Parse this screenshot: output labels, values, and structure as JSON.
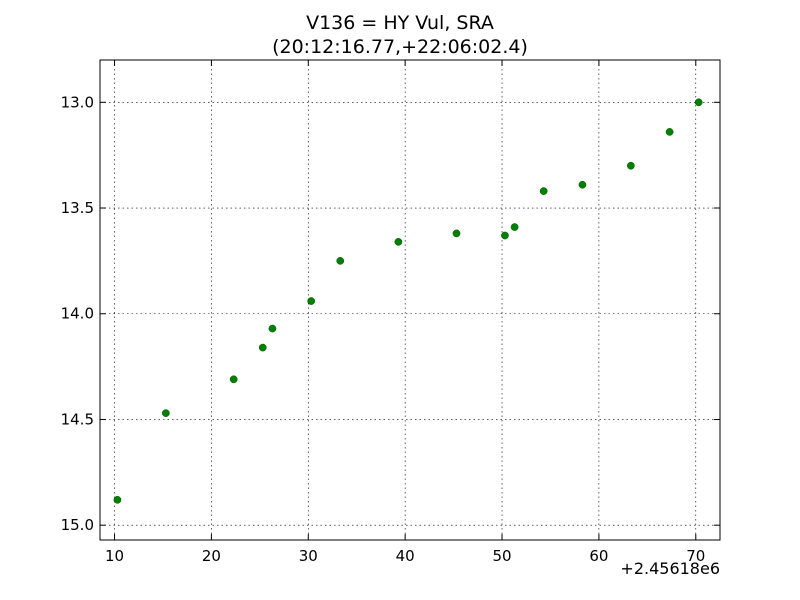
{
  "chart_data": {
    "type": "scatter",
    "title": "V136 = HY Vul, SRA",
    "subtitle": "(20:12:16.77,+22:06:02.4)",
    "xlabel": "",
    "ylabel": "",
    "x_offset_label": "+2.45618e6",
    "xlim": [
      8.5,
      72.5
    ],
    "ylim": [
      15.07,
      12.8
    ],
    "y_inverted": true,
    "grid": true,
    "x_ticks": [
      10,
      20,
      30,
      40,
      50,
      60,
      70
    ],
    "x_tick_labels": [
      "10",
      "20",
      "30",
      "40",
      "50",
      "60",
      "70"
    ],
    "y_ticks": [
      13.0,
      13.5,
      14.0,
      14.5,
      15.0
    ],
    "y_tick_labels": [
      "13.0",
      "13.5",
      "14.0",
      "14.5",
      "15.0"
    ],
    "marker_color": "#007f00",
    "series": [
      {
        "points": [
          {
            "x": 10.3,
            "y": 14.88
          },
          {
            "x": 15.3,
            "y": 14.47
          },
          {
            "x": 22.3,
            "y": 14.31
          },
          {
            "x": 25.3,
            "y": 14.16
          },
          {
            "x": 26.3,
            "y": 14.07
          },
          {
            "x": 30.3,
            "y": 13.94
          },
          {
            "x": 33.3,
            "y": 13.75
          },
          {
            "x": 39.3,
            "y": 13.66
          },
          {
            "x": 45.3,
            "y": 13.62
          },
          {
            "x": 50.3,
            "y": 13.63
          },
          {
            "x": 51.3,
            "y": 13.59
          },
          {
            "x": 54.3,
            "y": 13.42
          },
          {
            "x": 58.3,
            "y": 13.39
          },
          {
            "x": 63.3,
            "y": 13.3
          },
          {
            "x": 67.3,
            "y": 13.14
          },
          {
            "x": 70.3,
            "y": 13.0
          }
        ]
      }
    ]
  }
}
